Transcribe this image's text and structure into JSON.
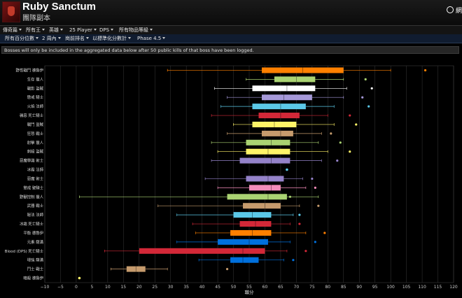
{
  "header": {
    "title": "Ruby Sanctum",
    "subtitle": "團隊副本",
    "right_text": "網"
  },
  "nav": {
    "row1": [
      "傳奇篇",
      "所有王",
      "英雄",
      "25 Player",
      "DPS",
      "所有物品等級"
    ],
    "row2": [
      "所有百分位數",
      "2 周內",
      "崗前排名",
      "以標準化分數計",
      "Phase 4.5"
    ]
  },
  "notice": "Bosses will only be included in the aggregated data below after 50 public kills of that boss have been logged.",
  "chart_data": {
    "type": "box",
    "xlabel": "職分",
    "xlim": [
      -10,
      120
    ],
    "xticks": [
      -10,
      -5,
      0,
      5,
      10,
      15,
      20,
      25,
      30,
      35,
      40,
      45,
      50,
      55,
      60,
      65,
      70,
      75,
      80,
      85,
      90,
      95,
      100,
      105,
      110,
      115,
      120
    ],
    "grid": true,
    "series": [
      {
        "label": "野性戰鬥 德魯伊",
        "min": 29,
        "q1": 59,
        "median": 72,
        "q3": 85,
        "max": 100,
        "outlier": 111,
        "color": "#ff8000"
      },
      {
        "label": "生存 獵人",
        "min": 54,
        "q1": 63,
        "median": 70,
        "q3": 76,
        "max": 85,
        "outlier": 92,
        "color": "#aad372"
      },
      {
        "label": "戰影 盜賊",
        "min": 44,
        "q1": 56,
        "median": 67,
        "q3": 76,
        "max": 86,
        "outlier": 94,
        "color": "#ffffff"
      },
      {
        "label": "懲戒 騎士",
        "min": 48,
        "q1": 59,
        "median": 66,
        "q3": 75,
        "max": 85,
        "outlier": 91,
        "color": "#a598d8"
      },
      {
        "label": "火焰 法師",
        "min": 46,
        "q1": 56,
        "median": 65,
        "q3": 73,
        "max": 82,
        "outlier": 93,
        "color": "#5bc8e8"
      },
      {
        "label": "穢惡 死亡騎士",
        "min": 43,
        "q1": 58,
        "median": 65,
        "q3": 71,
        "max": 80,
        "outlier": 87,
        "color": "#d32838"
      },
      {
        "label": "戰鬥 盜賊",
        "min": 50,
        "q1": 56,
        "median": 63,
        "q3": 70,
        "max": 82,
        "outlier": 89,
        "color": "#fff468"
      },
      {
        "label": "狂怒 戰士",
        "min": 48,
        "q1": 59,
        "median": 65,
        "q3": 69,
        "max": 78,
        "outlier": 81,
        "color": "#c69b6d"
      },
      {
        "label": "射擊 獵人",
        "min": 43,
        "q1": 54,
        "median": 62,
        "q3": 68,
        "max": 77,
        "outlier": 84,
        "color": "#aad372"
      },
      {
        "label": "刺殺 盜賊",
        "min": 45,
        "q1": 54,
        "median": 61,
        "q3": 68,
        "max": 80,
        "outlier": 87,
        "color": "#fff468"
      },
      {
        "label": "惡魔學識 術士",
        "min": 43,
        "q1": 52,
        "median": 62,
        "q3": 68,
        "max": 78,
        "outlier": 83,
        "color": "#9482c9"
      },
      {
        "label": "冰霜 法師",
        "min": 67,
        "q1": 67,
        "median": 67,
        "q3": 67,
        "max": 67,
        "outlier": 67,
        "color": "#5bc8e8"
      },
      {
        "label": "惡魔 術士",
        "min": 41,
        "q1": 54,
        "median": 61,
        "q3": 66,
        "max": 72,
        "outlier": 75,
        "color": "#9482c9"
      },
      {
        "label": "懲戒 聖騎士",
        "min": 45,
        "q1": 55,
        "median": 62,
        "q3": 65,
        "max": 73,
        "outlier": 76,
        "color": "#f48cba"
      },
      {
        "label": "野獸控制 獵人",
        "min": 1,
        "q1": 48,
        "median": 61,
        "q3": 67,
        "max": 77,
        "outlier": 68,
        "color": "#aad372"
      },
      {
        "label": "武器 戰士",
        "min": 26,
        "q1": 53,
        "median": 60,
        "q3": 65,
        "max": 71,
        "outlier": 77,
        "color": "#c69b6d"
      },
      {
        "label": "秘法 法師",
        "min": 32,
        "q1": 50,
        "median": 56,
        "q3": 62,
        "max": 69,
        "outlier": 71,
        "color": "#5bc8e8"
      },
      {
        "label": "冰霜 死亡騎士",
        "min": 37,
        "q1": 52,
        "median": 57,
        "q3": 62,
        "max": 68,
        "outlier": 71,
        "color": "#d32838"
      },
      {
        "label": "平衡 德魯伊",
        "min": 38,
        "q1": 49,
        "median": 56,
        "q3": 62,
        "max": 73,
        "outlier": 79,
        "color": "#ff8000"
      },
      {
        "label": "元素 薩滿",
        "min": 32,
        "q1": 45,
        "median": 55,
        "q3": 61,
        "max": 68,
        "outlier": 76,
        "color": "#0070dd"
      },
      {
        "label": "Blood (DPS) 死亡騎士",
        "min": 9,
        "q1": 20,
        "median": 53,
        "q3": 60,
        "max": 67,
        "outlier": 73,
        "color": "#d32838"
      },
      {
        "label": "增強 薩滿",
        "min": 39,
        "q1": 49,
        "median": 53,
        "q3": 58,
        "max": 66,
        "outlier": 69,
        "color": "#0070dd"
      },
      {
        "label": "鬥士 戰士",
        "min": 11,
        "q1": 16,
        "median": 19,
        "q3": 22,
        "max": 29,
        "outlier": 48,
        "color": "#c69b6d"
      },
      {
        "label": "暗殺 德魯伊",
        "min": 1,
        "q1": 1,
        "median": 1,
        "q3": 1,
        "max": 1,
        "outlier": 1,
        "color": "#fff468"
      }
    ]
  }
}
